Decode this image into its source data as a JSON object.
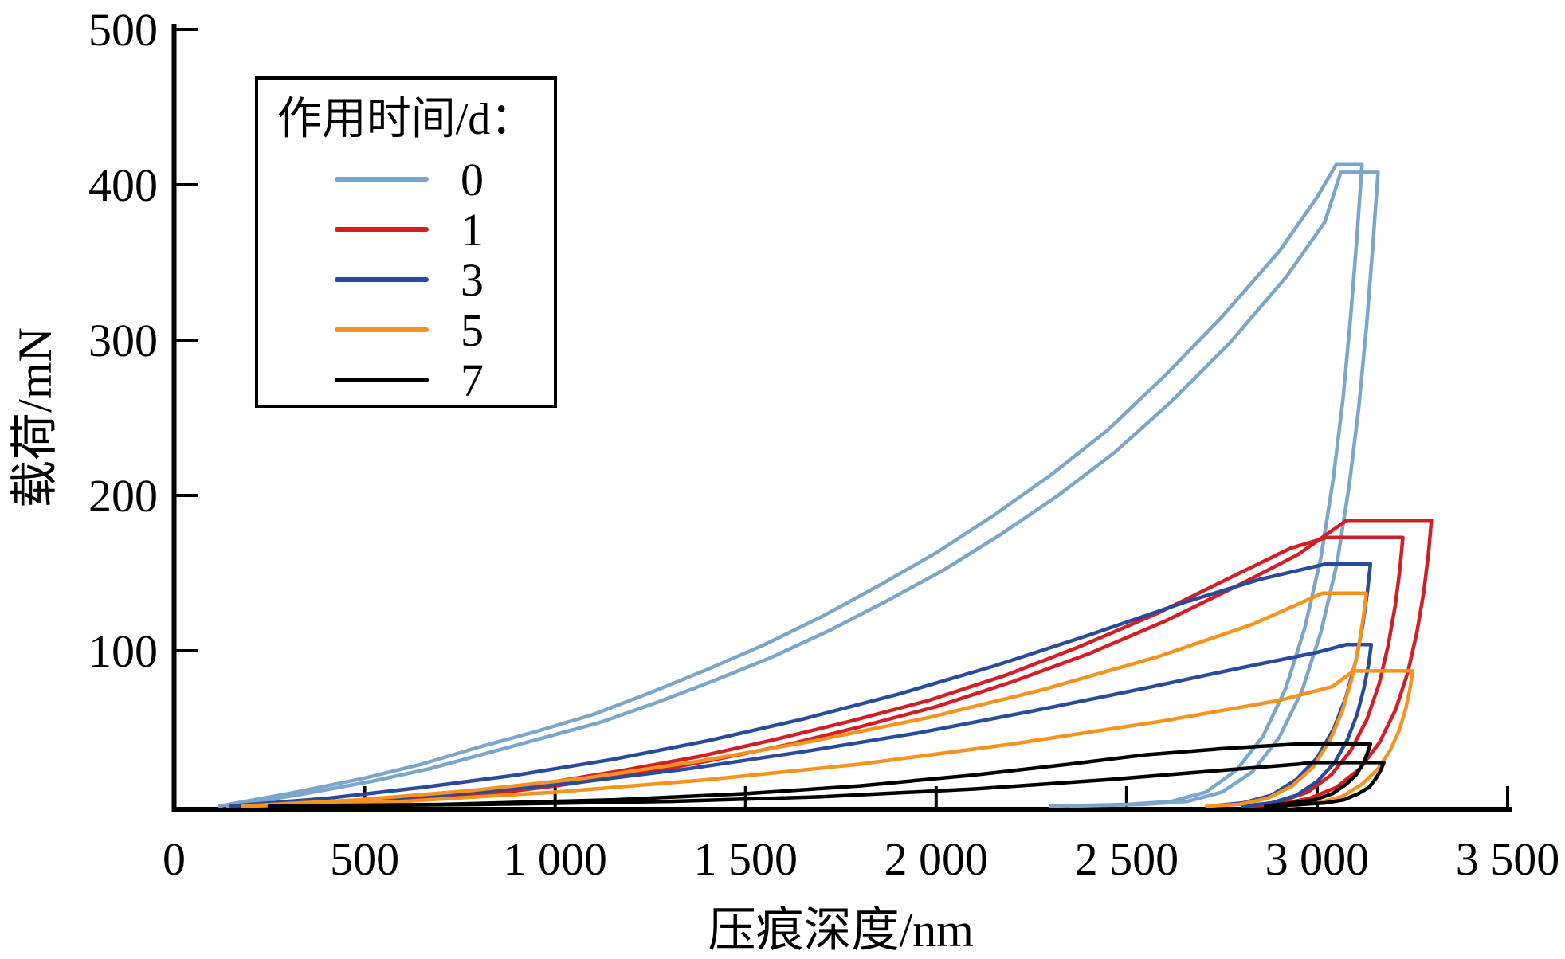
{
  "chart_data": {
    "type": "line",
    "title": "",
    "xlabel": "压痕深度/nm",
    "ylabel": "载荷/mN",
    "xlim": [
      0,
      3500
    ],
    "ylim": [
      0,
      500
    ],
    "grid": false,
    "x_ticks": [
      0,
      500,
      1000,
      1500,
      2000,
      2500,
      3000,
      3500
    ],
    "x_tick_labels": [
      "0",
      "500",
      "1 000",
      "1 500",
      "2 000",
      "2 500",
      "3 000",
      "3 500"
    ],
    "y_ticks": [
      100,
      200,
      300,
      400,
      500
    ],
    "y_tick_labels": [
      "100",
      "200",
      "300",
      "400",
      "500"
    ],
    "legend": {
      "title": "作用时间/d：",
      "position": "upper-left",
      "entries": [
        {
          "label": "0",
          "color": "#7BA6C9"
        },
        {
          "label": "1",
          "color": "#D21F25"
        },
        {
          "label": "3",
          "color": "#2A4A9C"
        },
        {
          "label": "5",
          "color": "#F6921E"
        },
        {
          "label": "7",
          "color": "#000000"
        }
      ]
    },
    "series": [
      {
        "name": "0",
        "unit": "d",
        "color": "#7BA6C9",
        "peak_load_mN": [
          413,
          408
        ],
        "loops": [
          [
            [
              120,
              0
            ],
            [
              300,
              8
            ],
            [
              500,
              18
            ],
            [
              650,
              27
            ],
            [
              800,
              38
            ],
            [
              950,
              48
            ],
            [
              1100,
              59
            ],
            [
              1250,
              73
            ],
            [
              1400,
              88
            ],
            [
              1550,
              104
            ],
            [
              1700,
              122
            ],
            [
              1850,
              142
            ],
            [
              2000,
              163
            ],
            [
              2150,
              187
            ],
            [
              2300,
              213
            ],
            [
              2450,
              242
            ],
            [
              2600,
              277
            ],
            [
              2750,
              315
            ],
            [
              2900,
              357
            ],
            [
              3000,
              392
            ],
            [
              3050,
              413
            ],
            [
              3118,
              413
            ],
            [
              3104,
              365
            ],
            [
              3088,
              315
            ],
            [
              3068,
              262
            ],
            [
              3042,
              210
            ],
            [
              3010,
              160
            ],
            [
              2968,
              115
            ],
            [
              2918,
              76
            ],
            [
              2858,
              45
            ],
            [
              2788,
              23
            ],
            [
              2708,
              9
            ],
            [
              2618,
              3
            ],
            [
              2500,
              1
            ],
            [
              2300,
              0
            ]
          ],
          [
            [
              140,
              0
            ],
            [
              320,
              7
            ],
            [
              520,
              16
            ],
            [
              670,
              24
            ],
            [
              820,
              34
            ],
            [
              970,
              44
            ],
            [
              1120,
              54
            ],
            [
              1270,
              67
            ],
            [
              1420,
              81
            ],
            [
              1570,
              96
            ],
            [
              1720,
              113
            ],
            [
              1870,
              132
            ],
            [
              2020,
              152
            ],
            [
              2170,
              175
            ],
            [
              2320,
              200
            ],
            [
              2470,
              228
            ],
            [
              2620,
              261
            ],
            [
              2770,
              298
            ],
            [
              2920,
              341
            ],
            [
              3020,
              376
            ],
            [
              3062,
              408
            ],
            [
              3160,
              408
            ],
            [
              3146,
              360
            ],
            [
              3130,
              310
            ],
            [
              3110,
              258
            ],
            [
              3084,
              206
            ],
            [
              3052,
              156
            ],
            [
              3010,
              112
            ],
            [
              2960,
              74
            ],
            [
              2900,
              44
            ],
            [
              2830,
              22
            ],
            [
              2750,
              9
            ],
            [
              2660,
              3
            ],
            [
              2540,
              1
            ],
            [
              2350,
              0
            ]
          ]
        ]
      },
      {
        "name": "1",
        "unit": "d",
        "color": "#D21F25",
        "peak_load_mN": [
          184,
          173
        ],
        "loops": [
          [
            [
              200,
              0
            ],
            [
              500,
              2
            ],
            [
              800,
              7
            ],
            [
              1000,
              13
            ],
            [
              1200,
              20
            ],
            [
              1400,
              29
            ],
            [
              1600,
              39
            ],
            [
              1800,
              51
            ],
            [
              2000,
              64
            ],
            [
              2200,
              80
            ],
            [
              2400,
              98
            ],
            [
              2600,
              119
            ],
            [
              2800,
              143
            ],
            [
              2950,
              162
            ],
            [
              3078,
              184
            ],
            [
              3300,
              184
            ],
            [
              3292,
              162
            ],
            [
              3280,
              138
            ],
            [
              3262,
              112
            ],
            [
              3238,
              86
            ],
            [
              3206,
              62
            ],
            [
              3164,
              41
            ],
            [
              3112,
              24
            ],
            [
              3050,
              12
            ],
            [
              2980,
              5
            ],
            [
              2900,
              1
            ],
            [
              2820,
              0
            ]
          ],
          [
            [
              180,
              0
            ],
            [
              480,
              3
            ],
            [
              780,
              8
            ],
            [
              980,
              15
            ],
            [
              1180,
              23
            ],
            [
              1380,
              32
            ],
            [
              1580,
              43
            ],
            [
              1780,
              55
            ],
            [
              1980,
              68
            ],
            [
              2180,
              84
            ],
            [
              2380,
              103
            ],
            [
              2580,
              124
            ],
            [
              2780,
              148
            ],
            [
              2930,
              166
            ],
            [
              3025,
              173
            ],
            [
              3225,
              173
            ],
            [
              3217,
              152
            ],
            [
              3205,
              129
            ],
            [
              3187,
              104
            ],
            [
              3163,
              79
            ],
            [
              3131,
              56
            ],
            [
              3089,
              36
            ],
            [
              3037,
              20
            ],
            [
              2975,
              9
            ],
            [
              2905,
              3
            ],
            [
              2825,
              0
            ]
          ]
        ]
      },
      {
        "name": "3",
        "unit": "d",
        "color": "#2A4A9C",
        "peak_load_mN": [
          156,
          104
        ],
        "loops": [
          [
            [
              150,
              0
            ],
            [
              400,
              5
            ],
            [
              650,
              12
            ],
            [
              900,
              20
            ],
            [
              1150,
              30
            ],
            [
              1400,
              42
            ],
            [
              1650,
              56
            ],
            [
              1900,
              72
            ],
            [
              2150,
              90
            ],
            [
              2400,
              110
            ],
            [
              2650,
              131
            ],
            [
              2850,
              146
            ],
            [
              3025,
              156
            ],
            [
              3140,
              156
            ],
            [
              3132,
              138
            ],
            [
              3120,
              117
            ],
            [
              3102,
              94
            ],
            [
              3077,
              71
            ],
            [
              3044,
              50
            ],
            [
              3000,
              31
            ],
            [
              2945,
              17
            ],
            [
              2880,
              7
            ],
            [
              2805,
              2
            ],
            [
              2720,
              0
            ]
          ],
          [
            [
              150,
              0
            ],
            [
              450,
              3
            ],
            [
              750,
              8
            ],
            [
              1050,
              15
            ],
            [
              1350,
              24
            ],
            [
              1650,
              35
            ],
            [
              1950,
              47
            ],
            [
              2250,
              61
            ],
            [
              2550,
              76
            ],
            [
              2800,
              89
            ],
            [
              3000,
              99
            ],
            [
              3077,
              104
            ],
            [
              3142,
              104
            ],
            [
              3135,
              91
            ],
            [
              3123,
              76
            ],
            [
              3105,
              59
            ],
            [
              3080,
              43
            ],
            [
              3046,
              28
            ],
            [
              3001,
              16
            ],
            [
              2946,
              7
            ],
            [
              2880,
              2
            ],
            [
              2805,
              0
            ]
          ]
        ]
      },
      {
        "name": "5",
        "unit": "d",
        "color": "#F6921E",
        "peak_load_mN": [
          137,
          87
        ],
        "loops": [
          [
            [
              180,
              0
            ],
            [
              480,
              4
            ],
            [
              780,
              10
            ],
            [
              1080,
              18
            ],
            [
              1380,
              29
            ],
            [
              1680,
              42
            ],
            [
              1980,
              57
            ],
            [
              2280,
              75
            ],
            [
              2580,
              96
            ],
            [
              2830,
              117
            ],
            [
              3014,
              137
            ],
            [
              3129,
              137
            ],
            [
              3121,
              121
            ],
            [
              3109,
              102
            ],
            [
              3091,
              82
            ],
            [
              3066,
              61
            ],
            [
              3033,
              42
            ],
            [
              2989,
              25
            ],
            [
              2935,
              13
            ],
            [
              2870,
              5
            ],
            [
              2795,
              1
            ],
            [
              2710,
              0
            ]
          ],
          [
            [
              200,
              0
            ],
            [
              600,
              3
            ],
            [
              1000,
              9
            ],
            [
              1400,
              17
            ],
            [
              1800,
              27
            ],
            [
              2200,
              40
            ],
            [
              2600,
              55
            ],
            [
              2900,
              68
            ],
            [
              3040,
              77
            ],
            [
              3095,
              87
            ],
            [
              3251,
              87
            ],
            [
              3244,
              76
            ],
            [
              3233,
              63
            ],
            [
              3216,
              49
            ],
            [
              3192,
              36
            ],
            [
              3160,
              24
            ],
            [
              3117,
              14
            ],
            [
              3064,
              6
            ],
            [
              3000,
              2
            ],
            [
              2925,
              0
            ]
          ]
        ]
      },
      {
        "name": "7",
        "unit": "d",
        "color": "#000000",
        "peak_load_mN": [
          40,
          28
        ],
        "loops": [
          [
            [
              250,
              0
            ],
            [
              700,
              1
            ],
            [
              1150,
              4
            ],
            [
              1500,
              8
            ],
            [
              1800,
              13
            ],
            [
              2100,
              20
            ],
            [
              2350,
              27
            ],
            [
              2550,
              33
            ],
            [
              2750,
              37
            ],
            [
              2950,
              40
            ],
            [
              3000,
              40
            ],
            [
              3140,
              40
            ],
            [
              3132,
              34
            ],
            [
              3120,
              27
            ],
            [
              3102,
              20
            ],
            [
              3076,
              14
            ],
            [
              3040,
              8
            ],
            [
              2993,
              4
            ],
            [
              2935,
              2
            ],
            [
              2865,
              0
            ]
          ],
          [
            [
              300,
              0
            ],
            [
              800,
              1
            ],
            [
              1300,
              3
            ],
            [
              1700,
              6
            ],
            [
              2100,
              11
            ],
            [
              2450,
              17
            ],
            [
              2750,
              23
            ],
            [
              2950,
              27
            ],
            [
              2985,
              28
            ],
            [
              3175,
              28
            ],
            [
              3167,
              23
            ],
            [
              3155,
              18
            ],
            [
              3136,
              12
            ],
            [
              3108,
              8
            ],
            [
              3070,
              4
            ],
            [
              3020,
              2
            ],
            [
              2955,
              1
            ],
            [
              2880,
              0
            ]
          ]
        ]
      }
    ]
  }
}
